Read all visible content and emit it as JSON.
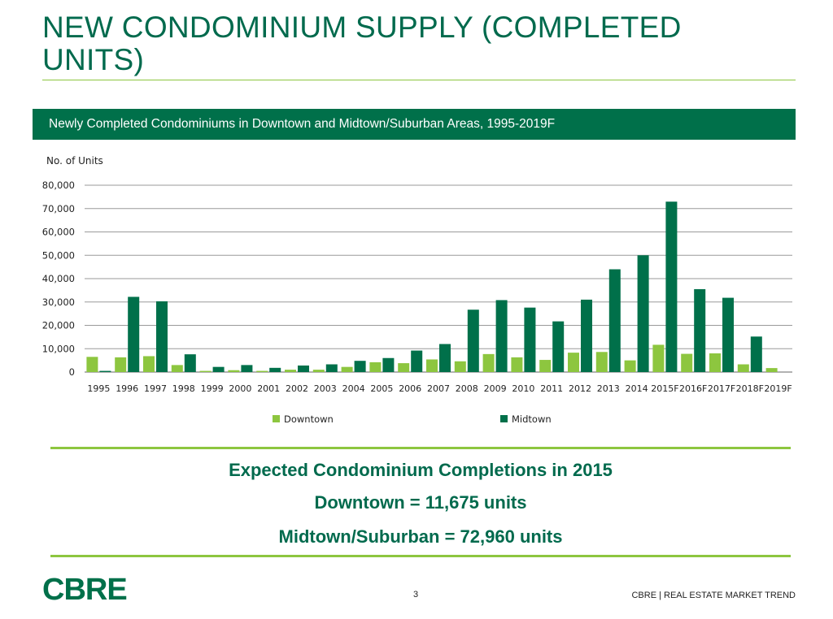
{
  "page": {
    "title": "NEW CONDOMINIUM SUPPLY (COMPLETED UNITS)",
    "chart_header": "Newly Completed Condominiums in Downtown and Midtown/Suburban Areas, 1995-2019F",
    "summary": {
      "heading": "Expected Condominium Completions in 2015",
      "downtown": "Downtown = 11,675 units",
      "midtown": "Midtown/Suburban = 72,960 units"
    },
    "footer": {
      "logo": "CBRE",
      "page_number": "3",
      "text": "CBRE  |  REAL ESTATE MARKET TREND"
    }
  },
  "chart_data": {
    "type": "bar",
    "title": "Newly Completed Condominiums in Downtown and Midtown/Suburban Areas, 1995-2019F",
    "ylabel": "No. of Units",
    "xlabel": "",
    "ylim": [
      0,
      80000
    ],
    "yticks": [
      "0",
      "10,000",
      "20,000",
      "30,000",
      "40,000",
      "50,000",
      "60,000",
      "70,000",
      "80,000"
    ],
    "grid": true,
    "legend_position": "bottom",
    "categories": [
      "1995",
      "1996",
      "1997",
      "1998",
      "1999",
      "2000",
      "2001",
      "2002",
      "2003",
      "2004",
      "2005",
      "2006",
      "2007",
      "2008",
      "2009",
      "2010",
      "2011",
      "2012",
      "2013",
      "2014",
      "2015F",
      "2016F",
      "2017F",
      "2018F",
      "2019F"
    ],
    "series": [
      {
        "name": "Downtown",
        "color": "#8dc63f",
        "values": [
          6500,
          6300,
          6800,
          3000,
          500,
          800,
          500,
          1000,
          1000,
          2200,
          4200,
          3800,
          5400,
          4600,
          7700,
          6300,
          5200,
          8300,
          8600,
          5000,
          11675,
          7800,
          8000,
          3300,
          1700
        ]
      },
      {
        "name": "Midtown",
        "color": "#00704a",
        "values": [
          500,
          32200,
          30300,
          7600,
          2200,
          3000,
          1800,
          2800,
          3300,
          4800,
          6000,
          9200,
          12000,
          26700,
          30800,
          27600,
          21700,
          31000,
          44000,
          50000,
          72960,
          35500,
          31800,
          15200,
          0
        ]
      }
    ]
  }
}
